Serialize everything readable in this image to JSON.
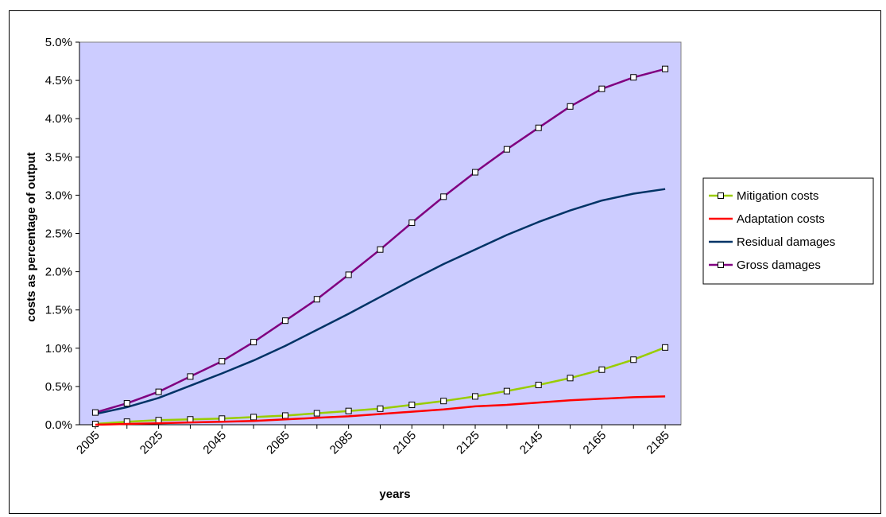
{
  "chart_data": {
    "type": "line",
    "xlabel": "years",
    "ylabel": "costs as percentage  of output",
    "x_tick_labels": [
      "2005",
      "2025",
      "2045",
      "2065",
      "2085",
      "2105",
      "2125",
      "2145",
      "2165",
      "2185"
    ],
    "y_tick_labels": [
      "0.0%",
      "0.5%",
      "1.0%",
      "1.5%",
      "2.0%",
      "2.5%",
      "3.0%",
      "3.5%",
      "4.0%",
      "4.5%",
      "5.0%"
    ],
    "ylim": [
      0,
      5.0
    ],
    "x": [
      2005,
      2015,
      2025,
      2035,
      2045,
      2055,
      2065,
      2075,
      2085,
      2095,
      2105,
      2115,
      2125,
      2135,
      2145,
      2155,
      2165,
      2175,
      2185
    ],
    "legend_position": "right",
    "plot_background": "#ccccff",
    "series": [
      {
        "name": "Mitigation costs",
        "color": "#99cc00",
        "markers": true,
        "values": [
          0.01,
          0.04,
          0.06,
          0.07,
          0.08,
          0.1,
          0.12,
          0.15,
          0.18,
          0.21,
          0.26,
          0.31,
          0.37,
          0.44,
          0.52,
          0.61,
          0.72,
          0.85,
          1.01
        ]
      },
      {
        "name": "Adaptation costs",
        "color": "#ff0000",
        "markers": false,
        "values": [
          0.0,
          0.01,
          0.02,
          0.03,
          0.04,
          0.05,
          0.07,
          0.09,
          0.11,
          0.14,
          0.17,
          0.2,
          0.24,
          0.26,
          0.29,
          0.32,
          0.34,
          0.36,
          0.37
        ]
      },
      {
        "name": "Residual damages",
        "color": "#003366",
        "markers": false,
        "values": [
          0.14,
          0.23,
          0.35,
          0.51,
          0.67,
          0.84,
          1.03,
          1.24,
          1.45,
          1.67,
          1.89,
          2.1,
          2.29,
          2.48,
          2.65,
          2.8,
          2.93,
          3.02,
          3.08
        ]
      },
      {
        "name": "Gross damages",
        "color": "#800080",
        "markers": true,
        "values": [
          0.16,
          0.28,
          0.43,
          0.63,
          0.83,
          1.08,
          1.36,
          1.64,
          1.96,
          2.29,
          2.64,
          2.98,
          3.3,
          3.6,
          3.88,
          4.16,
          4.39,
          4.54,
          4.65
        ]
      }
    ]
  }
}
